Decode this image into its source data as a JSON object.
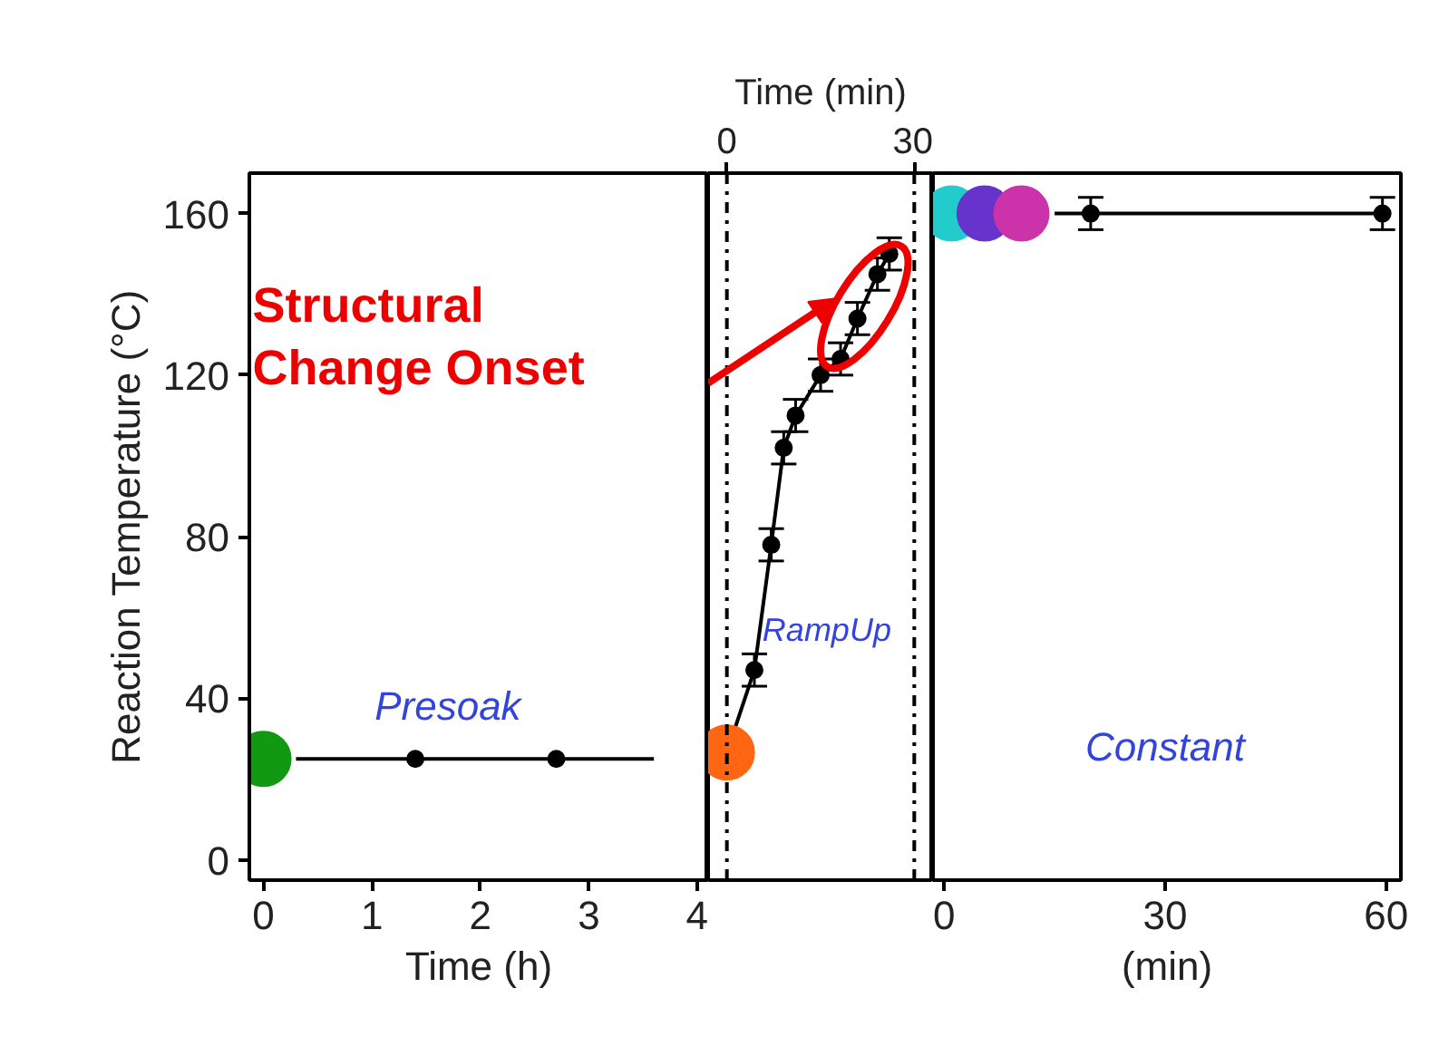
{
  "chart_data": [
    {
      "type": "line",
      "xlabel": "Time (h)",
      "ylabel": "Reaction Temperature (°C)",
      "xlim": [
        -0.13,
        4.1
      ],
      "xticks": [
        0,
        1,
        2,
        3,
        4
      ],
      "ylim": [
        -5,
        170
      ],
      "yticks": [
        0,
        40,
        80,
        120,
        160
      ],
      "grid": false,
      "annotations": [
        "Presoak",
        "Structural\nChange Onset"
      ],
      "series": [
        {
          "color": "#000000",
          "marker": "none",
          "x": [
            0.3,
            3.6
          ],
          "values": [
            25,
            25
          ]
        },
        {
          "type": "scatter",
          "color": "#000000",
          "marker": "circle",
          "x": [
            1.4,
            2.7
          ],
          "values": [
            25,
            25
          ]
        },
        {
          "type": "scatter",
          "color": "#119911",
          "marker": "circle",
          "x": [
            0
          ],
          "values": [
            25
          ]
        }
      ]
    },
    {
      "type": "line",
      "xlabel": "Time (min)",
      "xlim": [
        -3,
        33
      ],
      "xticks": [
        0,
        30
      ],
      "ylim": [
        -5,
        170
      ],
      "yticks": [
        0,
        40,
        80,
        120,
        160
      ],
      "grid": false,
      "tick_labels": "x",
      "annotations": [
        "RampUp"
      ],
      "ref_lines": [
        {
          "axis": "x",
          "value": 0,
          "line_style": "dashdot",
          "color": "#000000"
        },
        {
          "axis": "x",
          "value": 30,
          "line_style": "dashdot",
          "color": "#000000"
        }
      ],
      "series": [
        {
          "color": "#000000",
          "marker": "none",
          "x": [
            0,
            4.4,
            7.1,
            9.1,
            11,
            15,
            18.2,
            20.9,
            24.1,
            26
          ],
          "values": [
            26.6,
            47,
            78,
            102,
            110,
            120,
            124,
            134,
            145,
            150
          ]
        },
        {
          "type": "scatter",
          "color": "#000000",
          "marker": "circle",
          "x": [
            4.4,
            7.1,
            9.1,
            11,
            15,
            18.2,
            20.9,
            24.1,
            26
          ],
          "values": [
            47,
            78,
            102,
            110,
            120,
            124,
            134,
            145,
            150
          ],
          "errors": [
            4,
            4,
            4,
            4,
            4,
            4,
            4,
            4,
            4
          ]
        },
        {
          "type": "scatter",
          "color": "#ff6611",
          "marker": "circle",
          "x": [
            0
          ],
          "values": [
            26.6
          ]
        }
      ]
    },
    {
      "type": "line",
      "xlabel": "(min)",
      "xlim": [
        -1.5,
        62
      ],
      "xticks": [
        0,
        30,
        60
      ],
      "ylim": [
        -5,
        170
      ],
      "yticks": [
        0,
        40,
        80,
        120,
        160
      ],
      "grid": false,
      "tick_labels": "x",
      "annotations": [
        "Constant"
      ],
      "series": [
        {
          "color": "#000000",
          "marker": "none",
          "x": [
            15,
            59.5
          ],
          "values": [
            160,
            160
          ]
        },
        {
          "type": "scatter",
          "color": "#000000",
          "marker": "circle",
          "x": [
            19.9,
            59.5
          ],
          "values": [
            160,
            160
          ],
          "errors": [
            4,
            4
          ]
        },
        {
          "type": "scatter",
          "color": "#22cccc",
          "marker": "circle",
          "x": [
            1
          ],
          "values": [
            160
          ]
        },
        {
          "type": "scatter",
          "color": "#6633cc",
          "marker": "circle",
          "x": [
            5.5
          ],
          "values": [
            160
          ]
        },
        {
          "type": "scatter",
          "color": "#cc33aa",
          "marker": "circle",
          "x": [
            10.5
          ],
          "values": [
            160
          ]
        }
      ]
    }
  ]
}
